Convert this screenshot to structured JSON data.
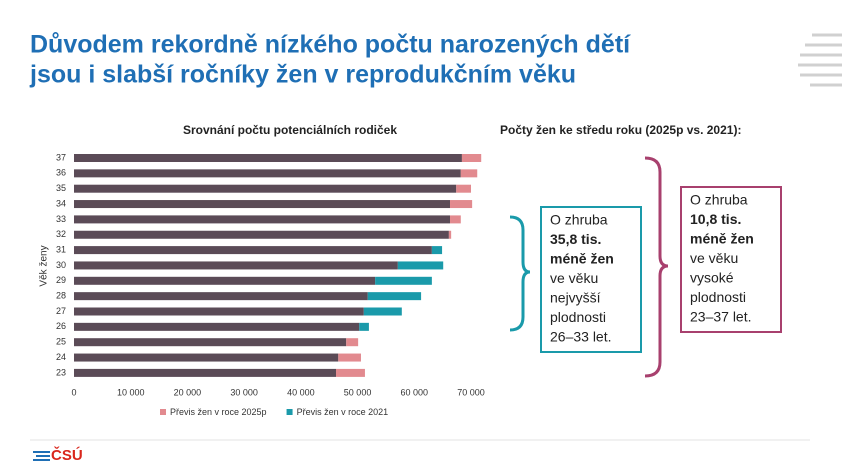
{
  "slide": {
    "title_lines": [
      "Důvodem rekordně nízkého počtu narozených dětí",
      "jsou i slabší ročníky žen v reprodukčním věku"
    ],
    "right_heading": "Počty žen ke středu roku (2025p vs. 2021):",
    "box_1": {
      "lines": [
        "O zhruba",
        "35,8 tis.",
        "méně žen",
        "ve věku",
        "nejvyšší",
        "plodnosti",
        "26–33 let."
      ],
      "bold": [
        1,
        2
      ]
    },
    "box_2": {
      "lines": [
        "O zhruba",
        "10,8 tis.",
        "méně žen",
        "ve věku",
        "vysoké",
        "plodnosti",
        "23–37 let."
      ],
      "bold": [
        1,
        2
      ]
    },
    "logo": "ČSÚ"
  },
  "chart_data": {
    "type": "stacked-bar-horizontal",
    "title": "Srovnání počtu potenciálních rodiček",
    "y_label": "Věk ženy",
    "categories": [
      "37",
      "36",
      "35",
      "34",
      "33",
      "32",
      "31",
      "30",
      "29",
      "28",
      "27",
      "26",
      "25",
      "24",
      "23"
    ],
    "series": [
      {
        "color": "#5b4b57",
        "values": [
          68400,
          68200,
          67400,
          66300,
          66300,
          66100,
          63100,
          57100,
          53100,
          51800,
          51100,
          50300,
          48000,
          46600,
          46200
        ]
      },
      {
        "name": "Převis žen v roce 2025p",
        "color": "#e28a8f",
        "values": [
          3400,
          2900,
          2600,
          3900,
          1900,
          400,
          0,
          0,
          0,
          0,
          0,
          0,
          2100,
          4000,
          5100
        ]
      },
      {
        "name": "Převis žen v roce 2021",
        "color": "#1a9aaa",
        "values": [
          0,
          0,
          0,
          0,
          0,
          0,
          1800,
          8000,
          10000,
          9400,
          6700,
          1700,
          0,
          0,
          0
        ]
      }
    ],
    "xlim": [
      0,
      70000
    ],
    "xticks": [
      0,
      {
        "value": 10000,
        "label": "10 000"
      },
      {
        "value": 20000,
        "label": "20 000"
      },
      {
        "value": 30000,
        "label": "30 000"
      },
      {
        "value": 40000,
        "label": "40 000"
      },
      {
        "value": 50000,
        "label": "50 000"
      },
      {
        "value": 60000,
        "label": "60 000"
      },
      {
        "value": 70000,
        "label": "70 000"
      }
    ],
    "legend": "bottom"
  }
}
